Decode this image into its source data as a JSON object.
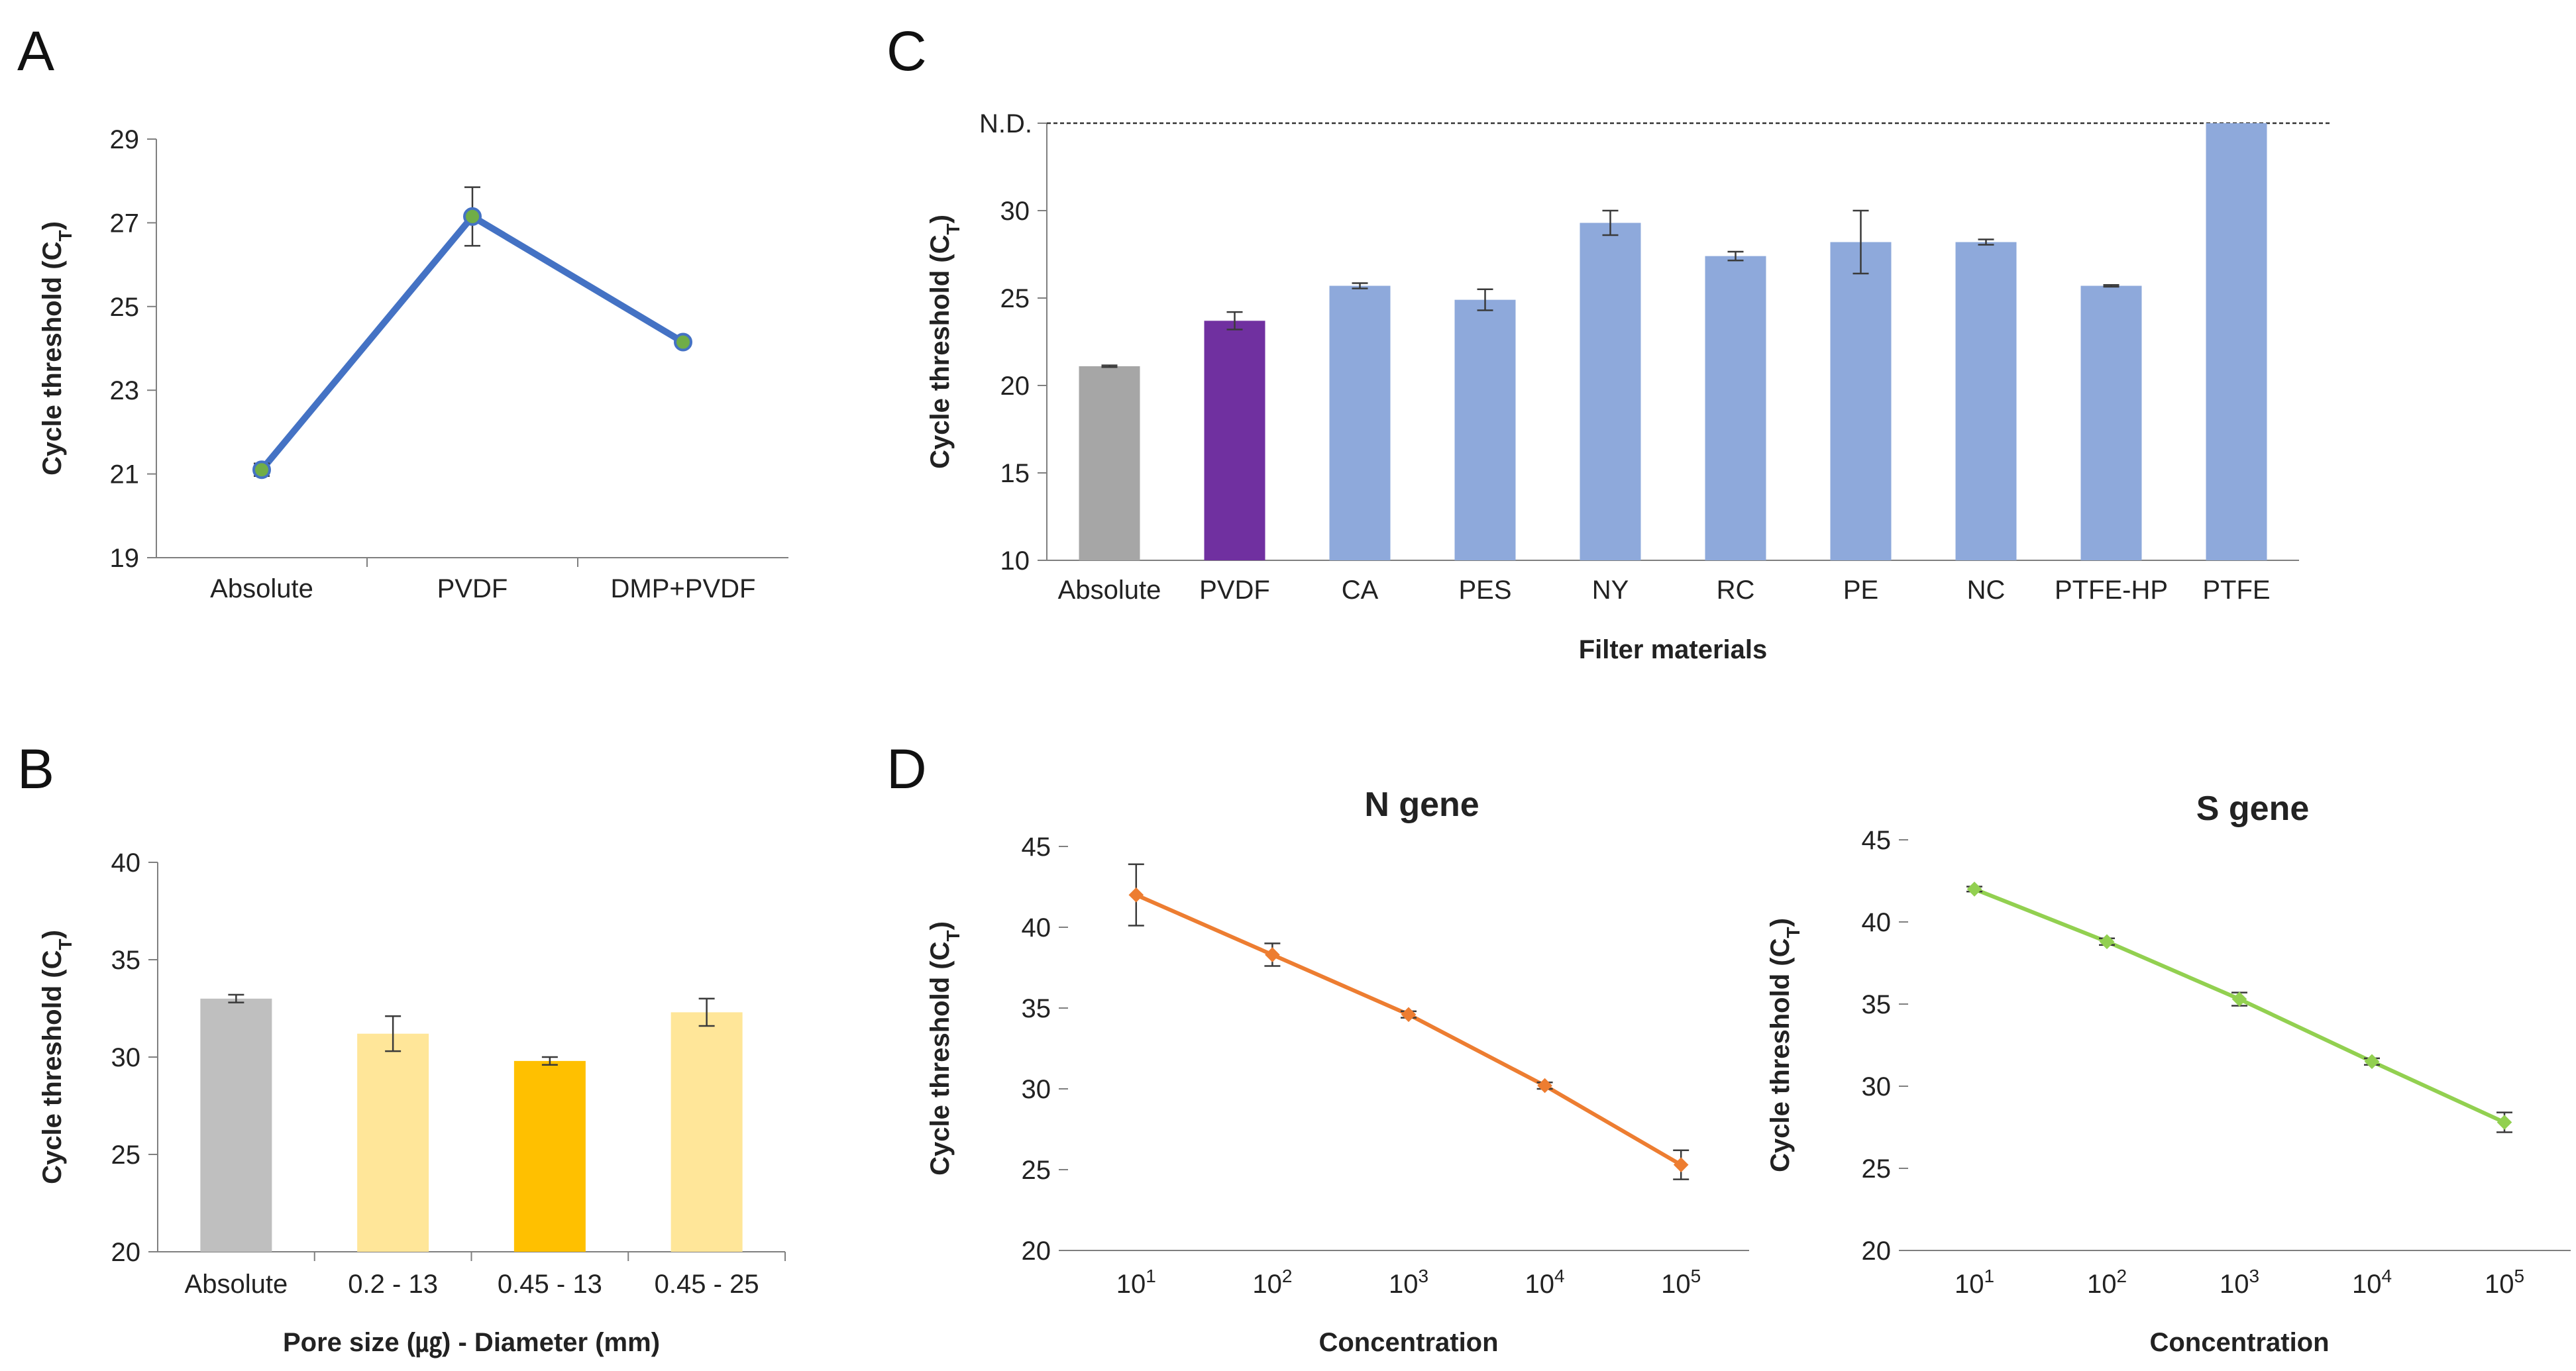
{
  "panel_letters": [
    "A",
    "B",
    "C",
    "D"
  ],
  "chart_data": [
    {
      "panel": "A",
      "type": "line",
      "categories": [
        "Absolute",
        "PVDF",
        "DMP+PVDF"
      ],
      "values": [
        21.1,
        27.15,
        24.15
      ],
      "errors": [
        0.15,
        0.7,
        0.1
      ],
      "ylabel_main": "Cycle threshold (C",
      "ylabel_sub": "T",
      "ylabel_close": ")",
      "xlabel": "",
      "ylim": [
        19,
        29
      ],
      "yticks": [
        19,
        21,
        23,
        25,
        27,
        29
      ],
      "line_color": "#4472C4",
      "marker_color": "#70AD47"
    },
    {
      "panel": "B",
      "type": "bar",
      "categories": [
        "Absolute",
        "0.2 - 13",
        "0.45 - 13",
        "0.45 - 25"
      ],
      "values": [
        33.0,
        31.2,
        29.8,
        32.3
      ],
      "errors": [
        0.2,
        0.9,
        0.2,
        0.7
      ],
      "colors": [
        "#BFBFBF",
        "#FFE699",
        "#FFC000",
        "#FFE699"
      ],
      "ylabel_main": "Cycle threshold (C",
      "ylabel_sub": "T",
      "ylabel_close": ")",
      "xlabel": "Pore size (㎍) - Diameter (mm)",
      "ylim": [
        20,
        40
      ],
      "yticks": [
        20,
        25,
        30,
        35,
        40
      ]
    },
    {
      "panel": "C",
      "type": "bar",
      "categories": [
        "Absolute",
        "PVDF",
        "CA",
        "PES",
        "NY",
        "RC",
        "PE",
        "NC",
        "PTFE-HP",
        "PTFE"
      ],
      "values": [
        21.1,
        23.7,
        25.7,
        24.9,
        29.3,
        27.4,
        28.2,
        28.2,
        25.7,
        "N.D."
      ],
      "errors": [
        0.05,
        0.5,
        0.15,
        0.6,
        0.7,
        0.25,
        1.8,
        0.15,
        0.05,
        0
      ],
      "colors": [
        "#A6A6A6",
        "#7030A0",
        "#8EA9DB",
        "#8EA9DB",
        "#8EA9DB",
        "#8EA9DB",
        "#8EA9DB",
        "#8EA9DB",
        "#8EA9DB",
        "#8EA9DB"
      ],
      "ylabel_main": "Cycle threshold (C",
      "ylabel_sub": "T",
      "ylabel_close": ")",
      "xlabel": "Filter materials",
      "ylim": [
        10,
        35
      ],
      "yticks": [
        10,
        15,
        20,
        25,
        30
      ],
      "nd_label": "N.D."
    },
    {
      "panel": "D",
      "type": "line",
      "title": "N gene",
      "x_exponents": [
        "1",
        "2",
        "3",
        "4",
        "5"
      ],
      "x_base": "10",
      "values": [
        42.0,
        38.3,
        34.6,
        30.2,
        25.3
      ],
      "errors": [
        1.9,
        0.7,
        0.2,
        0.2,
        0.9
      ],
      "ylabel_main": "Cycle threshold (C",
      "ylabel_sub": "T",
      "ylabel_close": ")",
      "xlabel": "Concentration",
      "ylim": [
        20,
        45
      ],
      "yticks": [
        20,
        25,
        30,
        35,
        40,
        45
      ],
      "line_color": "#ED7D31"
    },
    {
      "panel": "D",
      "type": "line",
      "title": "S gene",
      "x_exponents": [
        "1",
        "2",
        "3",
        "4",
        "5"
      ],
      "x_base": "10",
      "values": [
        42.0,
        38.8,
        35.3,
        31.5,
        27.8
      ],
      "errors": [
        0.15,
        0.2,
        0.4,
        0.2,
        0.6
      ],
      "ylabel_main": "Cycle threshold (C",
      "ylabel_sub": "T",
      "ylabel_close": ")",
      "xlabel": "Concentration",
      "ylim": [
        20,
        45
      ],
      "yticks": [
        20,
        25,
        30,
        35,
        40,
        45
      ],
      "line_color": "#92D050"
    }
  ]
}
